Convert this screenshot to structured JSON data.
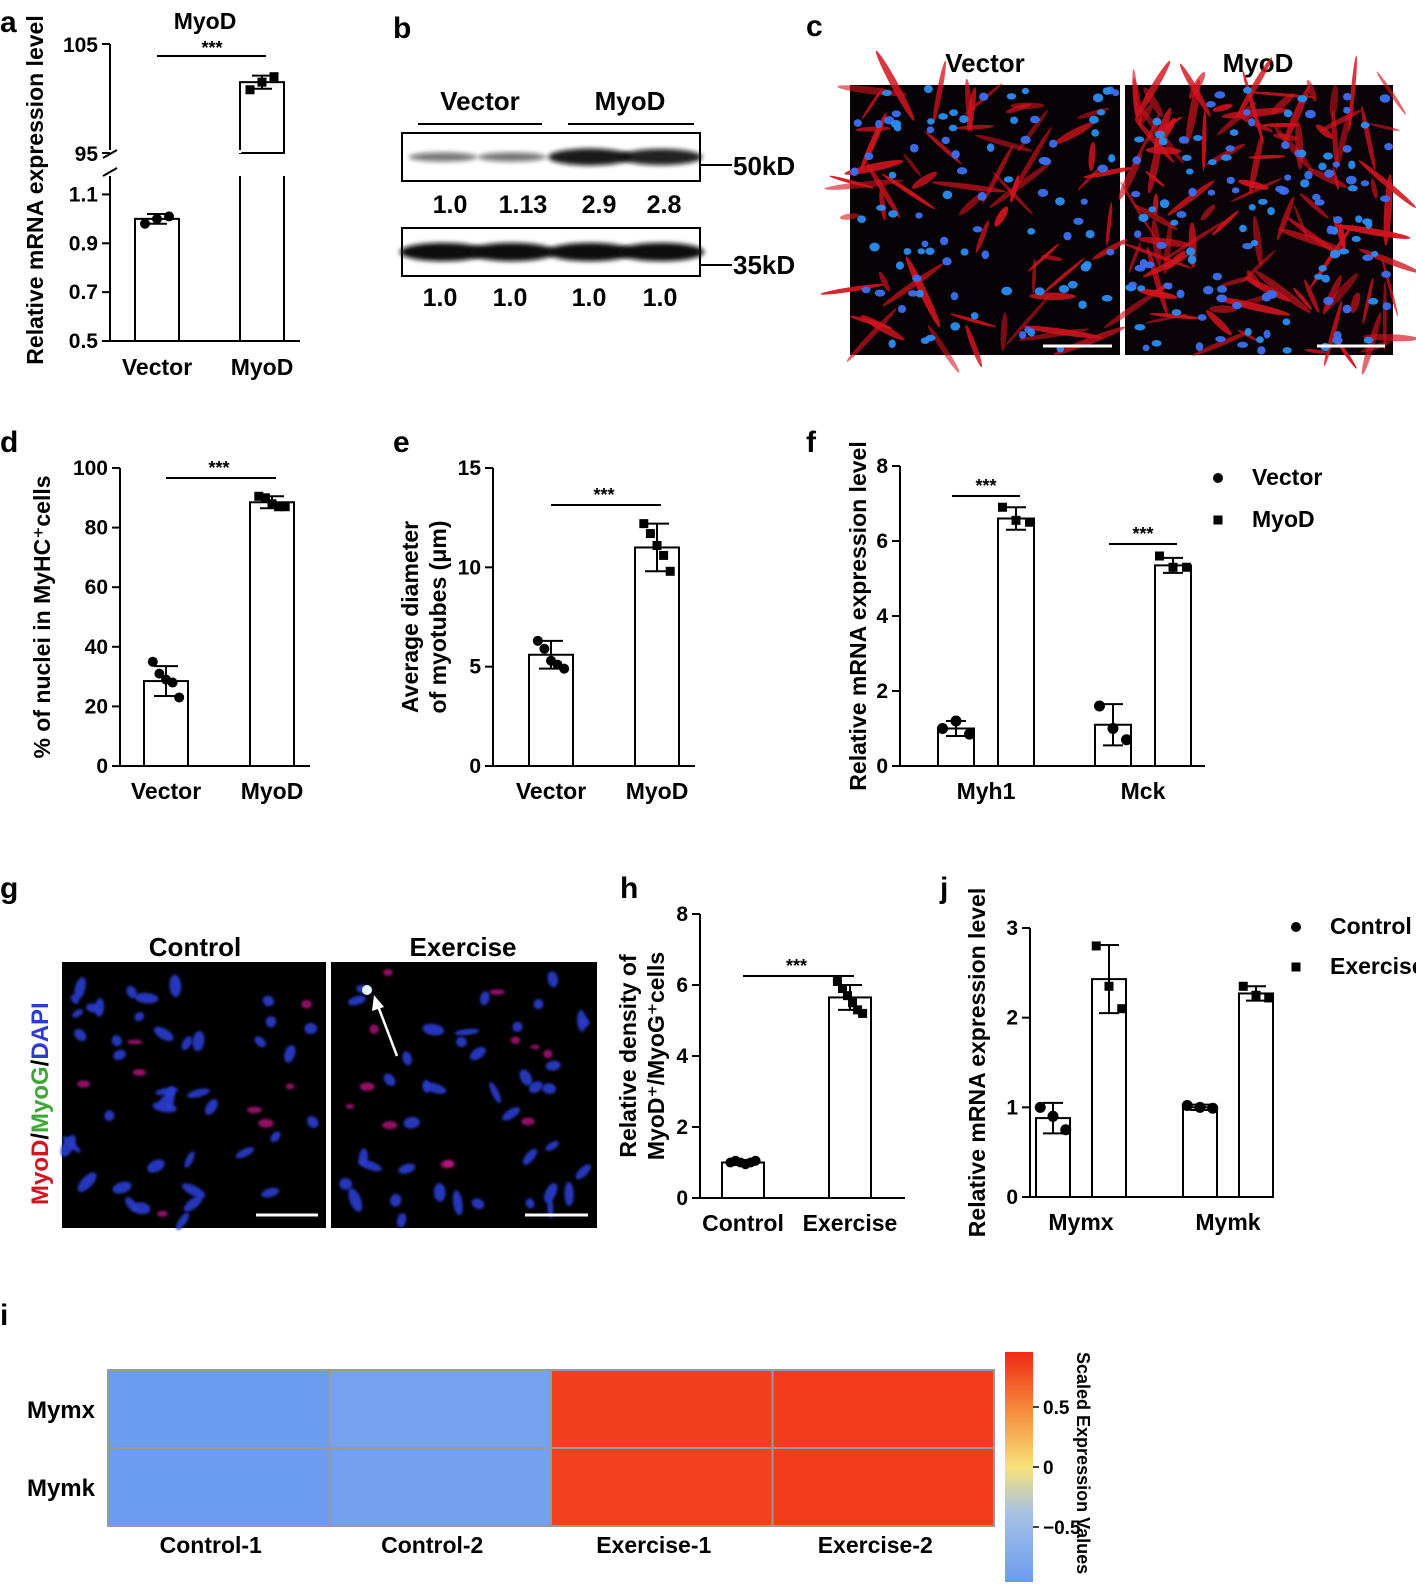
{
  "colors": {
    "red_stain": "#d2141e",
    "nuclei_blue": "#2b3ccf",
    "myog_green": "#3fa535",
    "heat_low": "#6c9bf2",
    "heat_high": "#f23c1e"
  },
  "panel_labels": {
    "a": "a",
    "b": "b",
    "c": "c",
    "d": "d",
    "e": "e",
    "f": "f",
    "g": "g",
    "h": "h",
    "i": "i",
    "j": "j"
  },
  "western_blot": {
    "groups": [
      "Vector",
      "MyoD"
    ],
    "bands": [
      {
        "size_label": "50kD",
        "values": [
          "1.0",
          "1.13",
          "2.9",
          "2.8"
        ],
        "intensity": [
          0.3,
          0.3,
          0.85,
          0.8
        ]
      },
      {
        "size_label": "35kD",
        "values": [
          "1.0",
          "1.0",
          "1.0",
          "1.0"
        ],
        "intensity": [
          0.95,
          0.95,
          0.95,
          0.95
        ]
      }
    ]
  },
  "micrograph_c": {
    "labels": [
      "Vector",
      "MyoD"
    ]
  },
  "micrograph_g": {
    "labels": [
      "Control",
      "Exercise"
    ],
    "stain_parts": [
      "MyoD",
      "/",
      "MyoG",
      "/",
      "DAPI"
    ]
  },
  "chart_data": [
    {
      "panel": "a",
      "type": "bar",
      "title": "MyoD",
      "categories": [
        "Vector",
        "MyoD"
      ],
      "values": [
        1.0,
        101.5
      ],
      "points": [
        [
          0.98,
          1.0,
          1.01
        ],
        [
          100.8,
          101.5,
          102.0
        ]
      ],
      "error": [
        0.02,
        0.6
      ],
      "ylabel": "Relative mRNA expression level",
      "broken_axis": {
        "lower": [
          0.5,
          1.2
        ],
        "upper": [
          95,
          105
        ]
      },
      "yticks_lower": [
        "0.5",
        "0.7",
        "0.9",
        "1.1"
      ],
      "yticks_upper": [
        "95",
        "105"
      ],
      "significance": "***"
    },
    {
      "panel": "d",
      "type": "bar",
      "categories": [
        "Vector",
        "MyoD"
      ],
      "values": [
        28.5,
        88.5
      ],
      "points": [
        [
          35,
          31,
          29,
          28,
          23
        ],
        [
          90.5,
          90,
          88,
          87,
          87
        ]
      ],
      "error": [
        5,
        2
      ],
      "ylabel": "% of nuclei in MyHC⁺cells",
      "ylim": [
        0,
        100
      ],
      "yticks": [
        "0",
        "20",
        "40",
        "60",
        "80",
        "100"
      ],
      "significance": "***"
    },
    {
      "panel": "e",
      "type": "bar",
      "categories": [
        "Vector",
        "MyoD"
      ],
      "values": [
        5.6,
        11.0
      ],
      "points": [
        [
          6.3,
          5.9,
          5.3,
          5.1,
          4.9
        ],
        [
          12.2,
          11.7,
          11.1,
          10.6,
          9.8
        ]
      ],
      "error": [
        0.7,
        1.2
      ],
      "ylabel_lines": [
        "Average diameter",
        "of myotubes (μm)"
      ],
      "ylim": [
        0,
        15
      ],
      "yticks": [
        "0",
        "5",
        "10",
        "15"
      ],
      "significance": "***"
    },
    {
      "panel": "f",
      "type": "bar",
      "categories": [
        "Myh1",
        "Mck"
      ],
      "series": [
        {
          "name": "Vector",
          "values": [
            1.0,
            1.1
          ],
          "points": [
            [
              1.0,
              1.2,
              0.85
            ],
            [
              1.6,
              1.0,
              0.7
            ]
          ],
          "error": [
            0.2,
            0.55
          ]
        },
        {
          "name": "MyoD",
          "values": [
            6.6,
            5.35
          ],
          "points": [
            [
              6.9,
              6.55,
              6.5
            ],
            [
              5.6,
              5.3,
              5.3
            ]
          ],
          "error": [
            0.3,
            0.2
          ]
        }
      ],
      "ylabel": "Relative mRNA expression level",
      "ylim": [
        0,
        8
      ],
      "yticks": [
        "0",
        "2",
        "4",
        "6",
        "8"
      ],
      "significance": [
        "***",
        "***"
      ],
      "legend_position": "top-right"
    },
    {
      "panel": "h",
      "type": "bar",
      "categories": [
        "Control",
        "Exercise"
      ],
      "values": [
        1.0,
        5.65
      ],
      "points": [
        [
          1.0,
          1.05,
          1.0,
          0.95,
          1.0,
          1.05
        ],
        [
          6.1,
          5.9,
          5.7,
          5.5,
          5.3,
          5.2
        ]
      ],
      "error": [
        0.07,
        0.35
      ],
      "ylabel_lines": [
        "Relative density of",
        "MyoD⁺/MyoG⁺cells"
      ],
      "ylim": [
        0,
        8
      ],
      "yticks": [
        "0",
        "2",
        "4",
        "6",
        "8"
      ],
      "significance": "***"
    },
    {
      "panel": "j",
      "type": "bar",
      "categories": [
        "Mymx",
        "Mymk"
      ],
      "series": [
        {
          "name": "Control",
          "values": [
            0.88,
            1.0
          ],
          "points": [
            [
              1.0,
              0.9,
              0.75
            ],
            [
              1.02,
              1.0,
              0.99
            ]
          ],
          "error": [
            0.17,
            0.03
          ]
        },
        {
          "name": "Exercise",
          "values": [
            2.43,
            2.27
          ],
          "points": [
            [
              2.8,
              2.35,
              2.1
            ],
            [
              2.35,
              2.25,
              2.22
            ]
          ],
          "error": [
            0.38,
            0.08
          ]
        }
      ],
      "ylabel": "Relative mRNA expression level",
      "ylim": [
        0,
        3
      ],
      "yticks": [
        "0",
        "1",
        "2",
        "3"
      ],
      "legend_position": "top-right"
    },
    {
      "panel": "i",
      "type": "heatmap",
      "rows": [
        "Mymx",
        "Mymk"
      ],
      "columns": [
        "Control-1",
        "Control-2",
        "Exercise-1",
        "Exercise-2"
      ],
      "values": [
        [
          -0.95,
          -0.75,
          0.85,
          0.9
        ],
        [
          -0.95,
          -0.78,
          0.83,
          0.92
        ]
      ],
      "colorbar": {
        "title": "Scaled Expression Values",
        "ticks": [
          "0.5",
          "0",
          "−0.5"
        ],
        "range": [
          -0.9,
          0.9
        ]
      }
    }
  ]
}
